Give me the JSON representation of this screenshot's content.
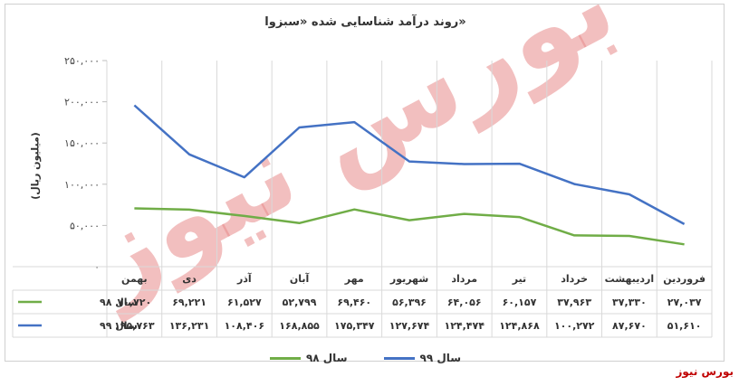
{
  "chart_data": {
    "type": "line",
    "title": "روند درآمد شناسایی شده «سبزوا»",
    "ylabel": "(میلیون ریال)",
    "ylim": [
      0,
      250000
    ],
    "y_ticks": [
      "۰",
      "۵۰,۰۰۰",
      "۱۰۰,۰۰۰",
      "۱۵۰,۰۰۰",
      "۲۰۰,۰۰۰",
      "۲۵۰,۰۰۰"
    ],
    "categories": [
      "فروردین",
      "اردیبهشت",
      "خرداد",
      "تیر",
      "مرداد",
      "شهریور",
      "مهر",
      "آبان",
      "آذر",
      "دی",
      "بهمن"
    ],
    "series": [
      {
        "name": "سال ۹۸",
        "color": "#70ad47",
        "values": [
          27037,
          37330,
          37963,
          60157,
          64056,
          56396,
          69460,
          52799,
          61527,
          69221,
          70720
        ],
        "labels": [
          "۲۷,۰۳۷",
          "۳۷,۳۳۰",
          "۳۷,۹۶۳",
          "۶۰,۱۵۷",
          "۶۴,۰۵۶",
          "۵۶,۳۹۶",
          "۶۹,۴۶۰",
          "۵۲,۷۹۹",
          "۶۱,۵۲۷",
          "۶۹,۲۲۱",
          "۷۰,۷۲۰"
        ]
      },
      {
        "name": "سال ۹۹",
        "color": "#4472c4",
        "values": [
          51610,
          87670,
          100272,
          124868,
          124474,
          127674,
          175347,
          168855,
          108406,
          136231,
          195763
        ],
        "labels": [
          "۵۱,۶۱۰",
          "۸۷,۶۷۰",
          "۱۰۰,۲۷۲",
          "۱۲۴,۸۶۸",
          "۱۲۴,۴۷۴",
          "۱۲۷,۶۷۴",
          "۱۷۵,۳۴۷",
          "۱۶۸,۸۵۵",
          "۱۰۸,۴۰۶",
          "۱۳۶,۲۳۱",
          "۱۹۵,۷۶۳"
        ]
      }
    ],
    "grid": "vertical",
    "legend": "bottom"
  },
  "watermark": "بورس نیوز",
  "footer_logo": "بورس نیوز"
}
